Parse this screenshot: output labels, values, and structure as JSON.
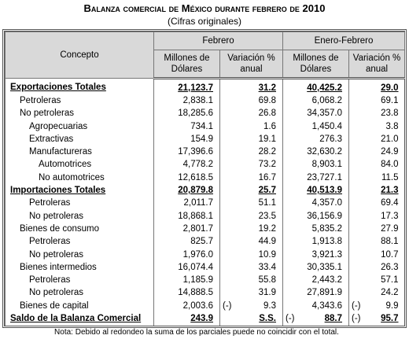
{
  "header": {
    "title": "Balanza comercial de México durante febrero de 2010",
    "subtitle": "(Cifras originales)"
  },
  "table": {
    "head": {
      "concept": "Concepto",
      "groups": [
        "Febrero",
        "Enero-Febrero"
      ],
      "columns": [
        "Millones de Dólares",
        "Variación % anual",
        "Millones de Dólares",
        "Variación % anual"
      ]
    },
    "rows": [
      {
        "label": "Exportaciones Totales",
        "level": 0,
        "bold": true,
        "cells": [
          "21,123.7",
          "31.2",
          "40,425.2",
          "29.0"
        ]
      },
      {
        "label": "Petroleras",
        "level": 1,
        "bold": false,
        "cells": [
          "2,838.1",
          "69.8",
          "6,068.2",
          "69.1"
        ]
      },
      {
        "label": "No petroleras",
        "level": 1,
        "bold": false,
        "cells": [
          "18,285.6",
          "26.8",
          "34,357.0",
          "23.8"
        ]
      },
      {
        "label": "Agropecuarias",
        "level": 2,
        "bold": false,
        "cells": [
          "734.1",
          "1.6",
          "1,450.4",
          "3.8"
        ]
      },
      {
        "label": "Extractivas",
        "level": 2,
        "bold": false,
        "cells": [
          "154.9",
          "19.1",
          "276.3",
          "21.0"
        ]
      },
      {
        "label": "Manufactureras",
        "level": 2,
        "bold": false,
        "cells": [
          "17,396.6",
          "28.2",
          "32,630.2",
          "24.9"
        ]
      },
      {
        "label": "Automotrices",
        "level": 3,
        "bold": false,
        "cells": [
          "4,778.2",
          "73.2",
          "8,903.1",
          "84.0"
        ]
      },
      {
        "label": "No automotrices",
        "level": 3,
        "bold": false,
        "cells": [
          "12,618.5",
          "16.7",
          "23,727.1",
          "11.5"
        ]
      },
      {
        "label": "Importaciones Totales",
        "level": 0,
        "bold": true,
        "cells": [
          "20,879.8",
          "25.7",
          "40,513.9",
          "21.3"
        ]
      },
      {
        "label": "Petroleras",
        "level": 2,
        "bold": false,
        "cells": [
          "2,011.7",
          "51.1",
          "4,357.0",
          "69.4"
        ]
      },
      {
        "label": "No petroleras",
        "level": 2,
        "bold": false,
        "cells": [
          "18,868.1",
          "23.5",
          "36,156.9",
          "17.3"
        ]
      },
      {
        "label": "Bienes de consumo",
        "level": 1,
        "bold": false,
        "cells": [
          "2,801.7",
          "19.2",
          "5,835.2",
          "27.9"
        ]
      },
      {
        "label": "Petroleras",
        "level": 2,
        "bold": false,
        "cells": [
          "825.7",
          "44.9",
          "1,913.8",
          "88.1"
        ]
      },
      {
        "label": "No petroleras",
        "level": 2,
        "bold": false,
        "cells": [
          "1,976.0",
          "10.9",
          "3,921.3",
          "10.7"
        ]
      },
      {
        "label": "Bienes intermedios",
        "level": 1,
        "bold": false,
        "cells": [
          "16,074.4",
          "33.4",
          "30,335.1",
          "26.3"
        ]
      },
      {
        "label": "Petroleras",
        "level": 2,
        "bold": false,
        "cells": [
          "1,185.9",
          "55.8",
          "2,443.2",
          "57.1"
        ]
      },
      {
        "label": "No petroleras",
        "level": 2,
        "bold": false,
        "cells": [
          "14,888.5",
          "31.9",
          "27,891.9",
          "24.2"
        ]
      },
      {
        "label": "Bienes de capital",
        "level": 1,
        "bold": false,
        "cells": [
          "2,003.6",
          {
            "sign": "(-)",
            "value": "9.3"
          },
          "4,343.6",
          {
            "sign": "(-)",
            "value": "9.9"
          }
        ]
      },
      {
        "label": "Saldo de la Balanza Comercial",
        "level": 0,
        "bold": true,
        "cells": [
          "243.9",
          "S.S.",
          {
            "sign": "(-)",
            "value": "88.7"
          },
          {
            "sign": "(-)",
            "value": "95.7"
          }
        ]
      }
    ]
  },
  "note": "Nota:  Debido al redondeo la suma de los parciales puede no coincidir con el total."
}
